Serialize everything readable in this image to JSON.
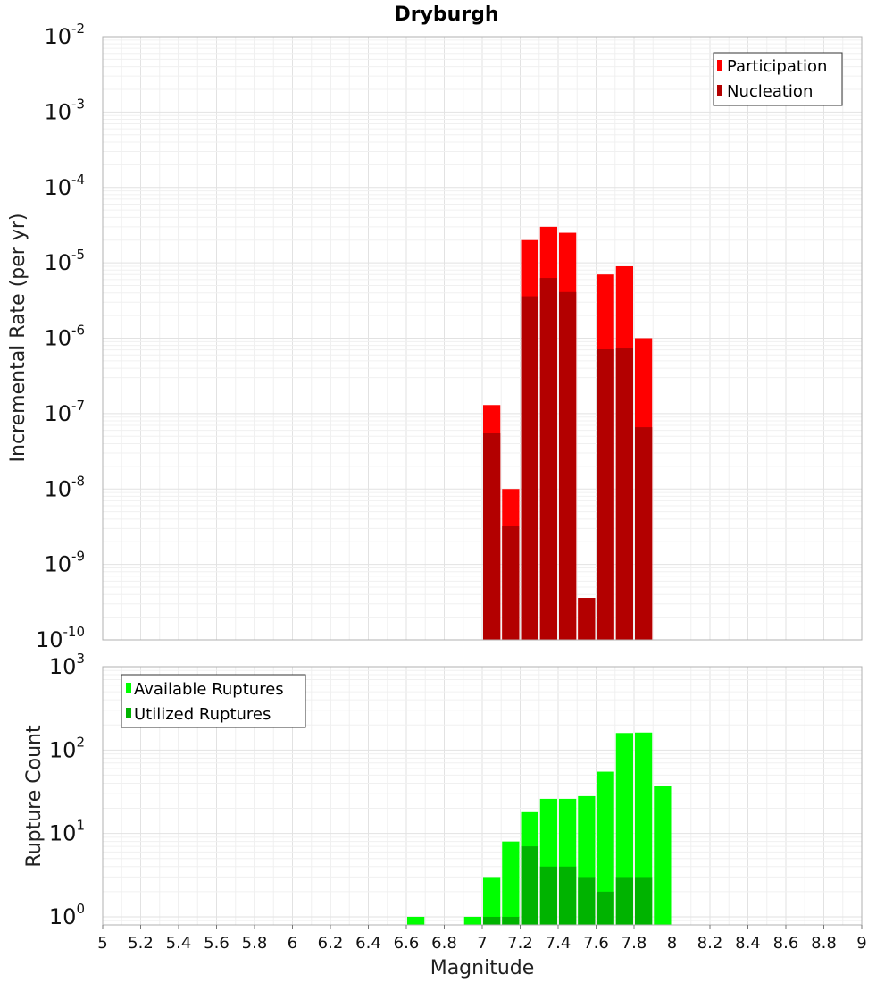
{
  "title": "Dryburgh",
  "chart_data": [
    {
      "type": "bar",
      "panel": "top",
      "ylabel": "Incremental Rate (per yr)",
      "yscale": "log",
      "ylim": [
        1e-10,
        0.01
      ],
      "xlim": [
        5,
        9
      ],
      "bin_width": 0.1,
      "legend": {
        "placement": "top-right"
      },
      "series": [
        {
          "name": "Participation",
          "color": "#ff0000",
          "x": [
            7.05,
            7.15,
            7.25,
            7.35,
            7.45,
            7.55,
            7.65,
            7.75,
            7.85
          ],
          "values": [
            1.3e-07,
            1e-08,
            2e-05,
            3e-05,
            2.5e-05,
            3.6e-10,
            7e-06,
            9e-06,
            1e-06
          ]
        },
        {
          "name": "Nucleation",
          "color": "#b30000",
          "x": [
            7.05,
            7.15,
            7.25,
            7.35,
            7.45,
            7.55,
            7.65,
            7.75,
            7.85
          ],
          "values": [
            5.5e-08,
            3.2e-09,
            3.6e-06,
            6.3e-06,
            4.1e-06,
            3.6e-10,
            7.3e-07,
            7.5e-07,
            6.6e-08
          ]
        }
      ],
      "y_ticks": [
        {
          "base": "10",
          "exp": "-2"
        },
        {
          "base": "10",
          "exp": "-3"
        },
        {
          "base": "10",
          "exp": "-4"
        },
        {
          "base": "10",
          "exp": "-5"
        },
        {
          "base": "10",
          "exp": "-6"
        },
        {
          "base": "10",
          "exp": "-7"
        },
        {
          "base": "10",
          "exp": "-8"
        },
        {
          "base": "10",
          "exp": "-9"
        },
        {
          "base": "10",
          "exp": "-10"
        }
      ]
    },
    {
      "type": "bar",
      "panel": "bottom",
      "xlabel": "Magnitude",
      "ylabel": "Rupture Count",
      "yscale": "log",
      "ylim": [
        0.8,
        1000
      ],
      "xlim": [
        5,
        9
      ],
      "bin_width": 0.1,
      "legend": {
        "placement": "top-left"
      },
      "series": [
        {
          "name": "Available Ruptures",
          "color": "#00ff00",
          "x": [
            6.65,
            6.95,
            7.05,
            7.15,
            7.25,
            7.35,
            7.45,
            7.55,
            7.65,
            7.75,
            7.85,
            7.95
          ],
          "values": [
            1,
            1,
            3,
            8,
            18,
            26,
            26,
            28,
            55,
            160,
            162,
            37
          ]
        },
        {
          "name": "Utilized Ruptures",
          "color": "#00b300",
          "x": [
            7.05,
            7.15,
            7.25,
            7.35,
            7.45,
            7.55,
            7.65,
            7.75,
            7.85
          ],
          "values": [
            1,
            1,
            7,
            4,
            4,
            3,
            2,
            3,
            3
          ]
        }
      ],
      "y_ticks": [
        {
          "base": "10",
          "exp": "3"
        },
        {
          "base": "10",
          "exp": "2"
        },
        {
          "base": "10",
          "exp": "1"
        },
        {
          "base": "10",
          "exp": "0"
        }
      ],
      "x_ticks": [
        "5",
        "5.2",
        "5.4",
        "5.6",
        "5.8",
        "6",
        "6.2",
        "6.4",
        "6.6",
        "6.8",
        "7",
        "7.2",
        "7.4",
        "7.6",
        "7.8",
        "8",
        "8.2",
        "8.4",
        "8.6",
        "8.8",
        "9"
      ]
    }
  ]
}
